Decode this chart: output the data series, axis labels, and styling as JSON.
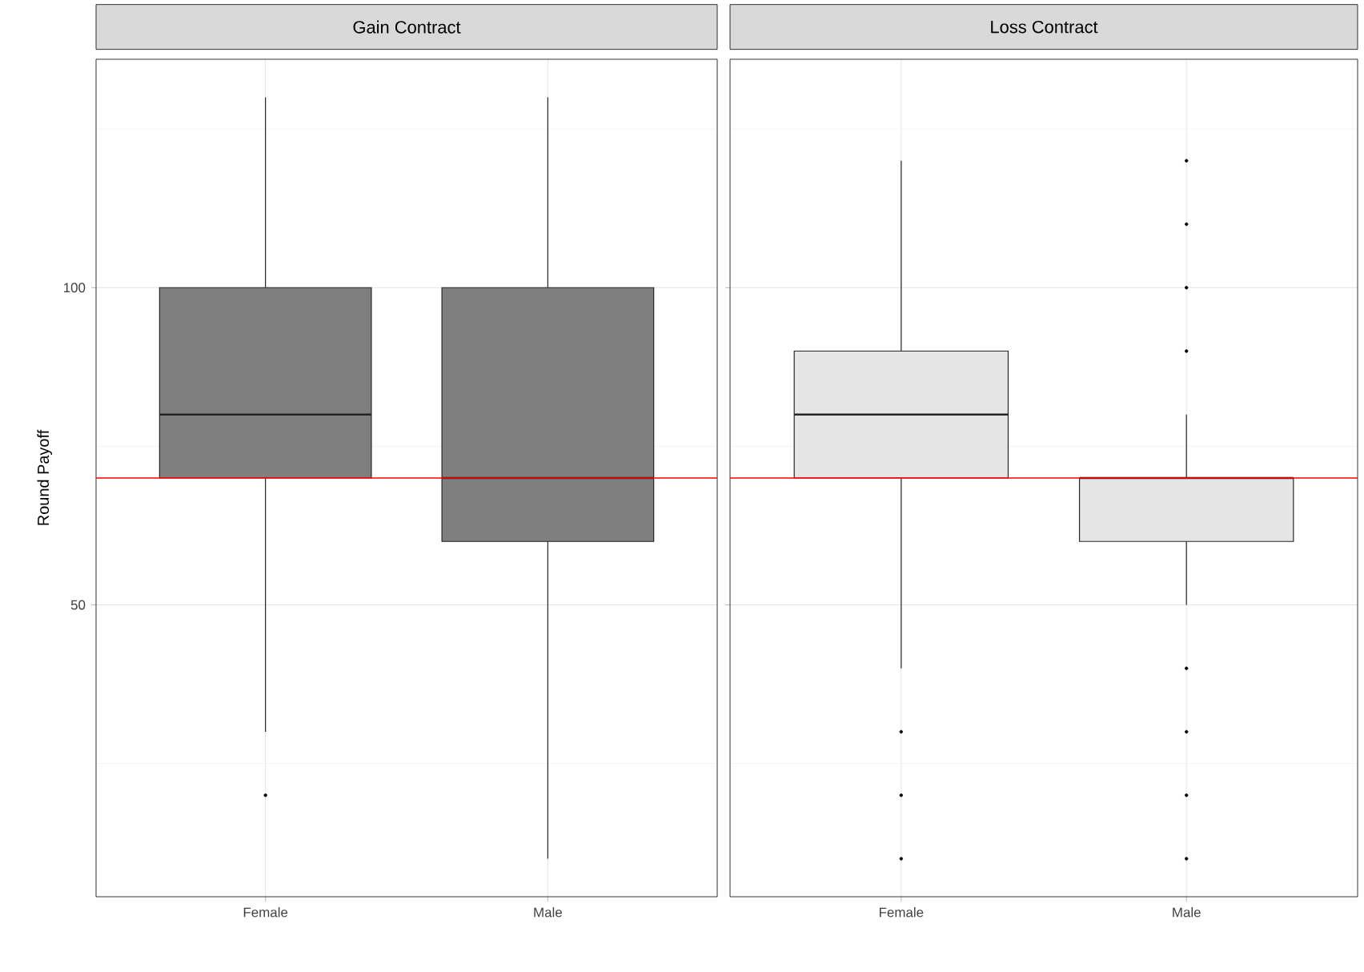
{
  "chart_data": [
    {
      "type": "box",
      "title": "Gain Contract",
      "ylabel": "Round Payoff",
      "categories": [
        "Female",
        "Male"
      ],
      "color": "#7f7f7f",
      "grid": true,
      "ylim": [
        4,
        136
      ],
      "yticks": [
        {
          "value": 25,
          "label": null
        },
        50,
        {
          "value": 75,
          "label": null
        },
        100,
        {
          "value": 125,
          "label": null
        }
      ],
      "boxes": [
        {
          "low": 30,
          "q1": 70,
          "median": 80,
          "q3": 100,
          "high": 130,
          "outliers": [
            20
          ]
        },
        {
          "low": 10,
          "q1": 60,
          "median": 70,
          "q3": 100,
          "high": 130
        }
      ],
      "ref_lines": [
        {
          "axis": "y",
          "value": 70,
          "color": "#ff0000"
        }
      ]
    },
    {
      "type": "box",
      "title": "Loss Contract",
      "categories": [
        "Female",
        "Male"
      ],
      "color": "#e5e5e5",
      "grid": true,
      "tick_labels": "x",
      "ylim": [
        4,
        136
      ],
      "yticks": [
        {
          "value": 25,
          "label": null
        },
        50,
        {
          "value": 75,
          "label": null
        },
        100,
        {
          "value": 125,
          "label": null
        }
      ],
      "boxes": [
        {
          "low": 40,
          "q1": 70,
          "median": 80,
          "q3": 90,
          "high": 120,
          "outliers": [
            30,
            20,
            10
          ]
        },
        {
          "low": 50,
          "q1": 60,
          "median": 70,
          "q3": 70,
          "high": 80,
          "outliers": [
            120,
            110,
            100,
            90,
            40,
            30,
            20,
            10
          ]
        }
      ],
      "ref_lines": [
        {
          "axis": "y",
          "value": 70,
          "color": "#ff0000"
        }
      ]
    }
  ]
}
